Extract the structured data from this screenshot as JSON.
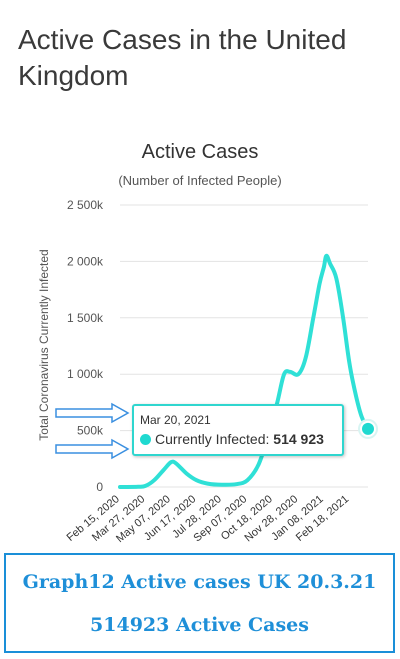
{
  "page": {
    "title": "Active Cases in the United Kingdom"
  },
  "colors": {
    "series": "#2fe0d6",
    "arrow": "#3a8fe0",
    "caption": "#1e8fd8"
  },
  "chart_data": {
    "type": "line",
    "title": "Active Cases",
    "subtitle": "(Number of Infected People)",
    "ylabel": "Total Coronavirus Currently Infected",
    "ylim": [
      0,
      2500000
    ],
    "yticks": [
      0,
      500000,
      1000000,
      1500000,
      2000000,
      2500000
    ],
    "ytick_labels": [
      "0",
      "500k",
      "1 000k",
      "1 500k",
      "2 000k",
      "2 500k"
    ],
    "x_tick_labels": [
      "Feb 15, 2020",
      "Mar 27, 2020",
      "May 07, 2020",
      "Jun 17, 2020",
      "Jul 28, 2020",
      "Sep 07, 2020",
      "Oct 18, 2020",
      "Nov 28, 2020",
      "Jan 08, 2021",
      "Feb 18, 2021"
    ],
    "x_tick_dates": [
      "2020-02-15",
      "2020-03-27",
      "2020-05-07",
      "2020-06-17",
      "2020-07-28",
      "2020-09-07",
      "2020-10-18",
      "2020-11-28",
      "2021-01-08",
      "2021-02-18"
    ],
    "x_range": [
      "2020-02-15",
      "2021-03-20"
    ],
    "grid": "horizontal",
    "series": [
      {
        "points": [
          [
            "2020-02-15",
            0
          ],
          [
            "2020-03-15",
            2000
          ],
          [
            "2020-03-27",
            10000
          ],
          [
            "2020-04-10",
            60000
          ],
          [
            "2020-04-25",
            150000
          ],
          [
            "2020-05-07",
            220000
          ],
          [
            "2020-05-15",
            210000
          ],
          [
            "2020-06-01",
            120000
          ],
          [
            "2020-06-17",
            60000
          ],
          [
            "2020-07-05",
            30000
          ],
          [
            "2020-07-28",
            20000
          ],
          [
            "2020-08-20",
            25000
          ],
          [
            "2020-09-07",
            60000
          ],
          [
            "2020-09-25",
            200000
          ],
          [
            "2020-10-10",
            450000
          ],
          [
            "2020-10-25",
            750000
          ],
          [
            "2020-11-05",
            1000000
          ],
          [
            "2020-11-15",
            1020000
          ],
          [
            "2020-11-28",
            1000000
          ],
          [
            "2020-12-10",
            1150000
          ],
          [
            "2020-12-22",
            1500000
          ],
          [
            "2021-01-01",
            1800000
          ],
          [
            "2021-01-08",
            1950000
          ],
          [
            "2021-01-12",
            2050000
          ],
          [
            "2021-01-18",
            1980000
          ],
          [
            "2021-01-28",
            1850000
          ],
          [
            "2021-02-08",
            1500000
          ],
          [
            "2021-02-18",
            1100000
          ],
          [
            "2021-03-01",
            800000
          ],
          [
            "2021-03-10",
            620000
          ],
          [
            "2021-03-20",
            514923
          ]
        ]
      }
    ],
    "tooltip": {
      "date": "Mar 20, 2021",
      "series_label": "Currently Infected:",
      "value": "514 923"
    }
  },
  "caption": {
    "line1": "Graph12 Active cases UK 20.3.21",
    "line2": "514923 Active Cases"
  }
}
